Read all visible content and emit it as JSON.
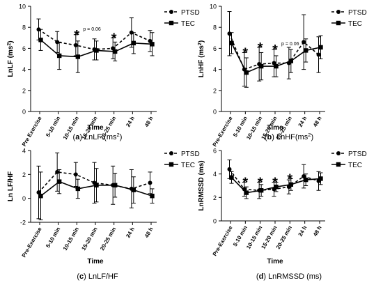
{
  "figure": {
    "categories": [
      "Pre Exercise",
      "5-10 min",
      "10-15 min",
      "15-20 min",
      "20-25 min",
      "24 h",
      "48 h"
    ],
    "x_axis_label": "Time",
    "legend_labels": [
      "PTSD",
      "TEC"
    ],
    "colors": {
      "line": "#000000",
      "text": "#000000"
    }
  },
  "chart_data": [
    {
      "id": "a",
      "type": "line",
      "panel_label": "(a)",
      "caption": "LnLF (ms²)",
      "categories": [
        "Pre Exercise",
        "5-10 min",
        "10-15 min",
        "15-20 min",
        "20-25 min",
        "24 h",
        "48 h"
      ],
      "xlabel": "Time",
      "ylabel": "LnLF (ms²)",
      "ylim": [
        0,
        10
      ],
      "yticks": [
        0,
        2,
        4,
        6,
        8,
        10
      ],
      "legend_position": "top-right",
      "series": [
        {
          "name": "PTSD",
          "marker": "circle",
          "line": "dashed",
          "values": [
            7.8,
            6.6,
            6.3,
            5.9,
            6.0,
            7.5,
            6.7
          ],
          "err": [
            1.0,
            1.0,
            1.0,
            1.0,
            1.0,
            1.4,
            1.0
          ]
        },
        {
          "name": "TEC",
          "marker": "square",
          "line": "solid",
          "values": [
            6.8,
            5.3,
            5.2,
            5.8,
            5.7,
            6.5,
            6.4
          ],
          "err": [
            1.0,
            1.3,
            1.5,
            0.9,
            0.9,
            1.0,
            1.1
          ]
        }
      ],
      "annotations": [
        {
          "category_index": 2,
          "text": "*"
        },
        {
          "category_index": 2,
          "text": "p = 0.06",
          "beside": true
        },
        {
          "category_index": 4,
          "text": "*"
        }
      ]
    },
    {
      "id": "b",
      "type": "line",
      "panel_label": "(b)",
      "caption": "LnHF(ms²)",
      "categories": [
        "Pre-Exercise",
        "5-10 min",
        "10-15 min",
        "15-20 min",
        "20-25 min",
        "24 h",
        "48 h"
      ],
      "xlabel": "Time",
      "ylabel": "LnHF (ms²)",
      "ylim": [
        0,
        10
      ],
      "yticks": [
        0,
        2,
        4,
        6,
        8,
        10
      ],
      "legend_position": "top-right",
      "series": [
        {
          "name": "PTSD",
          "marker": "circle",
          "line": "dashed",
          "values": [
            7.4,
            4.0,
            4.5,
            4.6,
            4.6,
            6.6,
            5.4
          ],
          "err": [
            2.1,
            1.6,
            1.6,
            1.3,
            1.5,
            2.6,
            1.7
          ]
        },
        {
          "name": "TEC",
          "marker": "square",
          "line": "solid",
          "values": [
            6.5,
            3.7,
            4.3,
            4.3,
            4.8,
            5.8,
            6.1
          ],
          "err": [
            1.0,
            1.4,
            1.3,
            1.0,
            1.1,
            1.1,
            1.1
          ]
        }
      ],
      "annotations": [
        {
          "category_index": 1,
          "text": "*"
        },
        {
          "category_index": 2,
          "text": "*"
        },
        {
          "category_index": 3,
          "text": "*"
        },
        {
          "category_index": 3,
          "text": "p = 0.06",
          "beside": true
        }
      ]
    },
    {
      "id": "c",
      "type": "line",
      "panel_label": "(c)",
      "caption": "LnLF/HF",
      "categories": [
        "Pre-Exercise",
        "5-10 min",
        "10-15 min",
        "15-20 min",
        "20-25 min",
        "24 h",
        "48 h"
      ],
      "xlabel": "Time",
      "ylabel": "Ln LF/HF",
      "ylim": [
        -2,
        4
      ],
      "yticks": [
        -2,
        0,
        2,
        4
      ],
      "legend_position": "top-right",
      "series": [
        {
          "name": "PTSD",
          "marker": "circle",
          "line": "dashed",
          "values": [
            0.5,
            2.2,
            2.0,
            1.3,
            1.1,
            0.8,
            1.3
          ],
          "err": [
            2.2,
            1.6,
            1.0,
            1.7,
            1.6,
            1.6,
            0.9
          ]
        },
        {
          "name": "TEC",
          "marker": "square",
          "line": "solid",
          "values": [
            0.2,
            1.4,
            0.8,
            1.1,
            1.1,
            0.7,
            0.2
          ],
          "err": [
            2.0,
            1.0,
            0.8,
            1.4,
            1.0,
            1.1,
            0.6
          ]
        }
      ],
      "annotations": []
    },
    {
      "id": "d",
      "type": "line",
      "panel_label": "(d)",
      "caption": "LnRMSSD (ms)",
      "categories": [
        "Pre-Exercise",
        "5-10 min",
        "10-15 min",
        "15-20 min",
        "20-25 min",
        "24 h",
        "48 h"
      ],
      "xlabel": "Time",
      "ylabel": "LnRMSSD (ms)",
      "ylim": [
        0,
        6
      ],
      "yticks": [
        0,
        2,
        4,
        6
      ],
      "legend_position": "top-right",
      "series": [
        {
          "name": "PTSD",
          "marker": "circle",
          "line": "dashed",
          "values": [
            4.4,
            2.7,
            2.6,
            2.7,
            2.9,
            3.8,
            3.4
          ],
          "err": [
            0.8,
            0.6,
            0.7,
            0.6,
            0.6,
            1.0,
            0.8
          ]
        },
        {
          "name": "TEC",
          "marker": "square",
          "line": "solid",
          "values": [
            3.7,
            2.4,
            2.6,
            2.9,
            3.1,
            3.5,
            3.6
          ],
          "err": [
            0.5,
            0.5,
            0.5,
            0.4,
            0.5,
            0.5,
            0.5
          ]
        }
      ],
      "annotations": [
        {
          "category_index": 1,
          "text": "*"
        },
        {
          "category_index": 2,
          "text": "*"
        },
        {
          "category_index": 3,
          "text": "*"
        },
        {
          "category_index": 4,
          "text": "*"
        }
      ]
    }
  ]
}
